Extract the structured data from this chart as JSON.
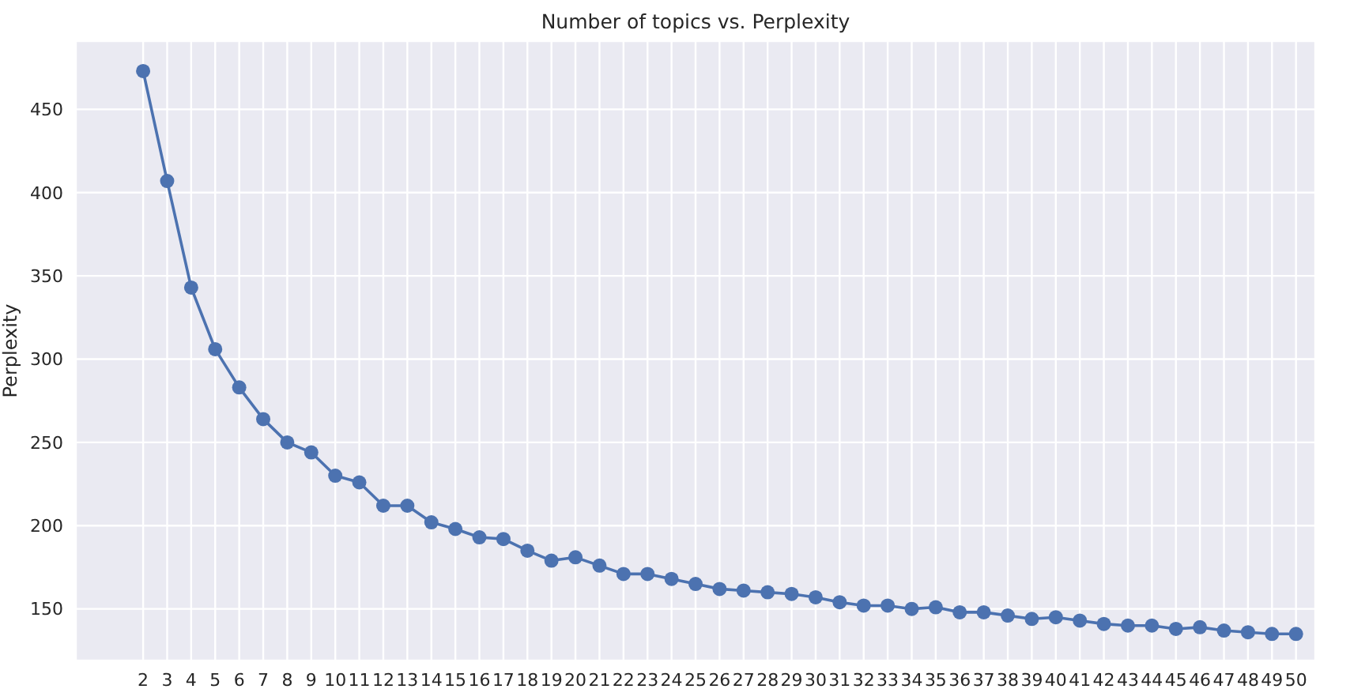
{
  "chart_data": {
    "type": "line",
    "title": "Number of topics vs. Perplexity",
    "ylabel": "Perplexity",
    "x": [
      2,
      3,
      4,
      5,
      6,
      7,
      8,
      9,
      10,
      11,
      12,
      13,
      14,
      15,
      16,
      17,
      18,
      19,
      20,
      21,
      22,
      23,
      24,
      25,
      26,
      27,
      28,
      29,
      30,
      31,
      32,
      33,
      34,
      35,
      36,
      37,
      38,
      39,
      40,
      41,
      42,
      43,
      44,
      45,
      46,
      47,
      48,
      49,
      50
    ],
    "series": [
      {
        "color": "#4c72b0",
        "values": [
          473,
          407,
          343,
          306,
          283,
          264,
          250,
          244,
          230,
          226,
          212,
          212,
          202,
          198,
          193,
          192,
          185,
          179,
          181,
          176,
          171,
          171,
          168,
          165,
          162,
          161,
          160,
          159,
          157,
          154,
          152,
          152,
          150,
          151,
          148,
          148,
          146,
          144,
          145,
          143,
          141,
          140,
          140,
          138,
          139,
          137,
          136,
          135,
          135
        ]
      }
    ],
    "xlim": [
      -0.8,
      50.8
    ],
    "xticks": [
      2,
      3,
      4,
      5,
      6,
      7,
      8,
      9,
      10,
      11,
      12,
      13,
      14,
      15,
      16,
      17,
      18,
      19,
      20,
      21,
      22,
      23,
      24,
      25,
      26,
      27,
      28,
      29,
      30,
      31,
      32,
      33,
      34,
      35,
      36,
      37,
      38,
      39,
      40,
      41,
      42,
      43,
      44,
      45,
      46,
      47,
      48,
      49,
      50
    ],
    "ylim": [
      119,
      491
    ],
    "yticks": [
      150,
      200,
      250,
      300,
      350,
      400,
      450
    ],
    "grid": true,
    "legend": false,
    "marker": "circle",
    "line_style": "solid"
  }
}
